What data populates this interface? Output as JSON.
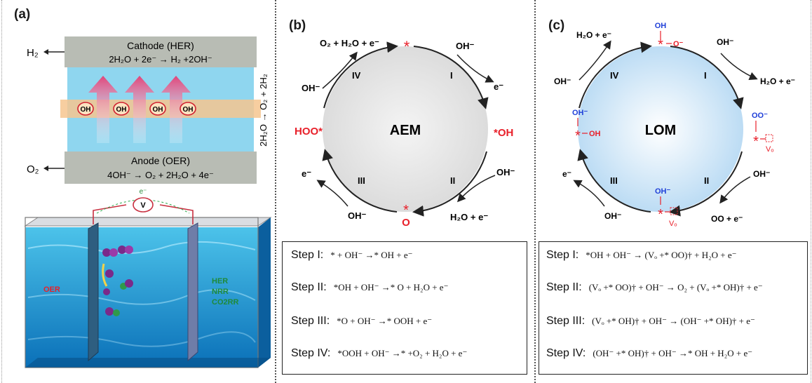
{
  "panels": {
    "a": {
      "label": "(a)",
      "cathode_title": "Cathode (HER)",
      "cathode_eq": "2H₂O + 2e⁻ → H₂ +2OH⁻",
      "anode_title": "Anode (OER)",
      "anode_eq": "4OH⁻ → O₂ + 2H₂O + 4e⁻",
      "h2": "H₂",
      "o2": "O₂",
      "ion": "OH",
      "overall": "2H₂O → O₂ + 2H₂",
      "electron": "e⁻",
      "voltmeter": "V",
      "oer": "OER",
      "right_labels": [
        "HER",
        "NRR",
        "CO2RR"
      ]
    },
    "b": {
      "label": "(b)",
      "center": "AEM",
      "steps": [
        "I",
        "II",
        "III",
        "IV"
      ],
      "intermediates": {
        "top": "*",
        "right": "*OH",
        "bottom_star": "*",
        "bottom": "O",
        "left": "HOO*"
      },
      "labels": {
        "oh_I": "OH⁻",
        "e_I": "e⁻",
        "oh_II": "OH⁻",
        "out_II": "H₂O + e⁻",
        "oh_III": "OH⁻",
        "e_III": "e⁻",
        "oh_IV": "OH⁻",
        "out_IV": "O₂ + H₂O + e⁻"
      },
      "equations": [
        {
          "step": "Step I:",
          "eq": "* + OH⁻ →* OH + e⁻"
        },
        {
          "step": "Step II:",
          "eq": "*OH + OH⁻ →* O + H₂O + e⁻"
        },
        {
          "step": "Step III:",
          "eq": "*O + OH⁻ →* OOH + e⁻"
        },
        {
          "step": "Step IV:",
          "eq": "*OOH + OH⁻ →* +O₂ + H₂O + e⁻"
        }
      ]
    },
    "c": {
      "label": "(c)",
      "center": "LOM",
      "steps": [
        "I",
        "II",
        "III",
        "IV"
      ],
      "intermediates": {
        "oh_blue": "OH",
        "o_minus": "O⁻",
        "oo_blue": "OO⁻",
        "vo": "Vₒ",
        "oh_left_blue": "OH⁻",
        "oh_left": "OH",
        "oh_bottom_blue": "OH⁻",
        "vo2": "Vₒ",
        "star": "*"
      },
      "labels": {
        "oh_I": "OH⁻",
        "out_I": "H₂O + e⁻",
        "oh_II": "OH⁻",
        "out_II": "OO + e⁻",
        "oh_III": "OH⁻",
        "e_III": "e⁻",
        "oh_IV": "OH⁻",
        "out_IV": "H₂O + e⁻"
      },
      "equations": [
        {
          "step": "Step I:",
          "eq": "*OH + OH⁻ → (Vₒ +* OO)† + H₂O + e⁻"
        },
        {
          "step": "Step II:",
          "eq": "(Vₒ +* OO)† + OH⁻ → O₂ + (Vₒ +* OH)† + e⁻"
        },
        {
          "step": "Step III:",
          "eq": "(Vₒ +* OH)† + OH⁻ → (OH⁻ +* OH)† + e⁻"
        },
        {
          "step": "Step IV:",
          "eq": "(OH⁻ +* OH)† + OH⁻ →* OH + H₂O + e⁻"
        }
      ]
    }
  },
  "colors": {
    "red": "#e8202a",
    "blue": "#1f3fd8",
    "membrane": "#f6c58f",
    "electrolyte": "#8fd6ef",
    "electrode": "#b8bcb4",
    "aem_circle": "#e6e6e6",
    "lom_circle": "#cfe6f7"
  }
}
